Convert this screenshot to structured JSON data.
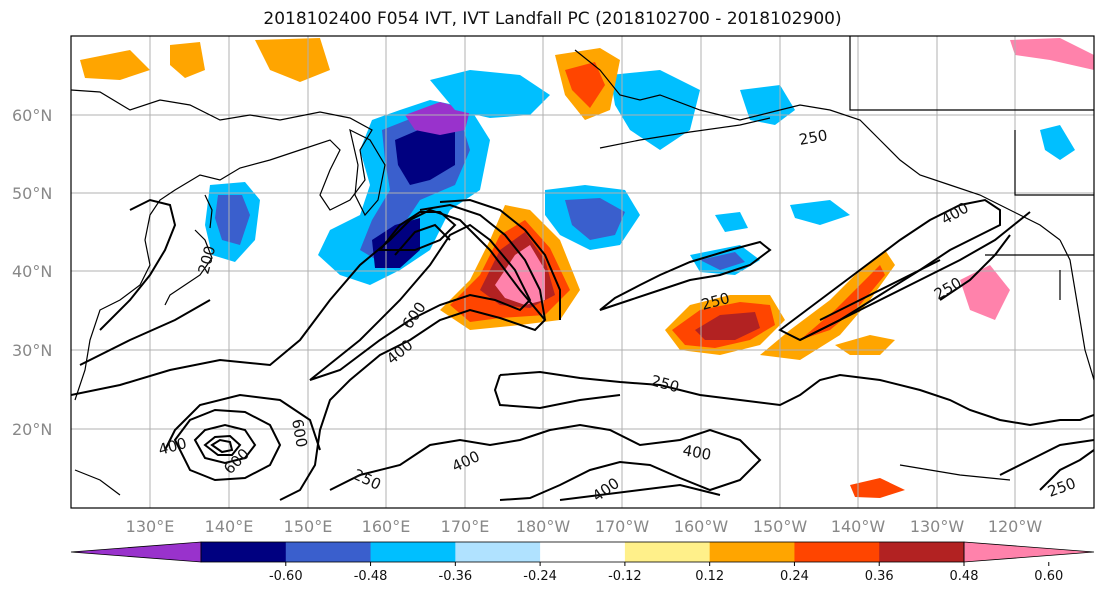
{
  "title": "2018102400 F054 IVT, IVT Landfall PC (2018102700 - 2018102900)",
  "map": {
    "lat_labels": [
      "60°N",
      "50°N",
      "40°N",
      "30°N",
      "20°N"
    ],
    "lon_labels": [
      "130°E",
      "140°E",
      "150°E",
      "160°E",
      "170°E",
      "180°W",
      "170°W",
      "160°W",
      "150°W",
      "140°W",
      "130°W",
      "120°W"
    ],
    "contour_labels": [
      {
        "text": "250",
        "rotate": -10
      },
      {
        "text": "400",
        "rotate": -30
      },
      {
        "text": "250",
        "rotate": -30
      },
      {
        "text": "250",
        "rotate": -15
      },
      {
        "text": "600",
        "rotate": -55
      },
      {
        "text": "400",
        "rotate": -40
      },
      {
        "text": "250",
        "rotate": 15
      },
      {
        "text": "400",
        "rotate": 10
      },
      {
        "text": "400",
        "rotate": -25
      },
      {
        "text": "400",
        "rotate": -35
      },
      {
        "text": "250",
        "rotate": 25
      },
      {
        "text": "400",
        "rotate": -15
      },
      {
        "text": "250",
        "rotate": -20
      },
      {
        "text": "200",
        "rotate": -75
      },
      {
        "text": "600",
        "rotate": -45
      },
      {
        "text": "600",
        "rotate": 80
      }
    ],
    "colors": {
      "land_outline": "#000000",
      "grid": "#b0b0b0",
      "contour": "#000000"
    }
  },
  "colorbar": {
    "colors": [
      "#9932cc",
      "#000080",
      "#3a5fcd",
      "#00bfff",
      "#b0e2ff",
      "#ffffff",
      "#fff08a",
      "#ffa500",
      "#ff4500",
      "#b22222",
      "#ff82ab"
    ],
    "tick_labels": [
      "-0.60",
      "-0.48",
      "-0.36",
      "-0.24",
      "-0.12",
      "0.12",
      "0.24",
      "0.36",
      "0.48",
      "0.60"
    ]
  }
}
